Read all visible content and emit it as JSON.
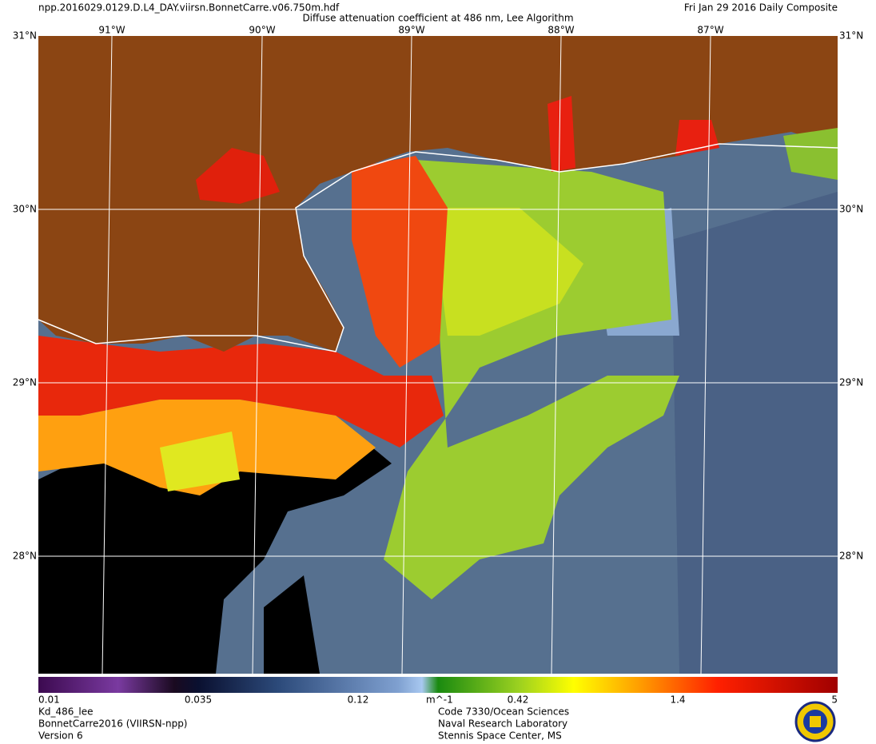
{
  "header": {
    "filename": "npp.2016029.0129.D.L4_DAY.viirsn.BonnetCarre.v06.750m.hdf",
    "title": "Diffuse attenuation coefficient at 486 nm, Lee Algorithm",
    "date": "Fri Jan 29 2016 Daily Composite"
  },
  "map": {
    "lon_labels": [
      "91°W",
      "90°W",
      "89°W",
      "88°W",
      "87°W"
    ],
    "lat_labels": [
      "31°N",
      "30°N",
      "29°N",
      "28°N"
    ]
  },
  "colorbar": {
    "ticks": [
      "0.01",
      "0.035",
      "0.12",
      "0.42",
      "1.4",
      "5"
    ],
    "unit": "m^-1"
  },
  "footer": {
    "left": [
      "Kd_486_lee",
      "BonnetCarre2016 (VIIRSN-npp)",
      "Version 6"
    ],
    "center": [
      "Code 7330/Ocean Sciences",
      "Naval Research Laboratory",
      "Stennis Space Center, MS"
    ]
  }
}
